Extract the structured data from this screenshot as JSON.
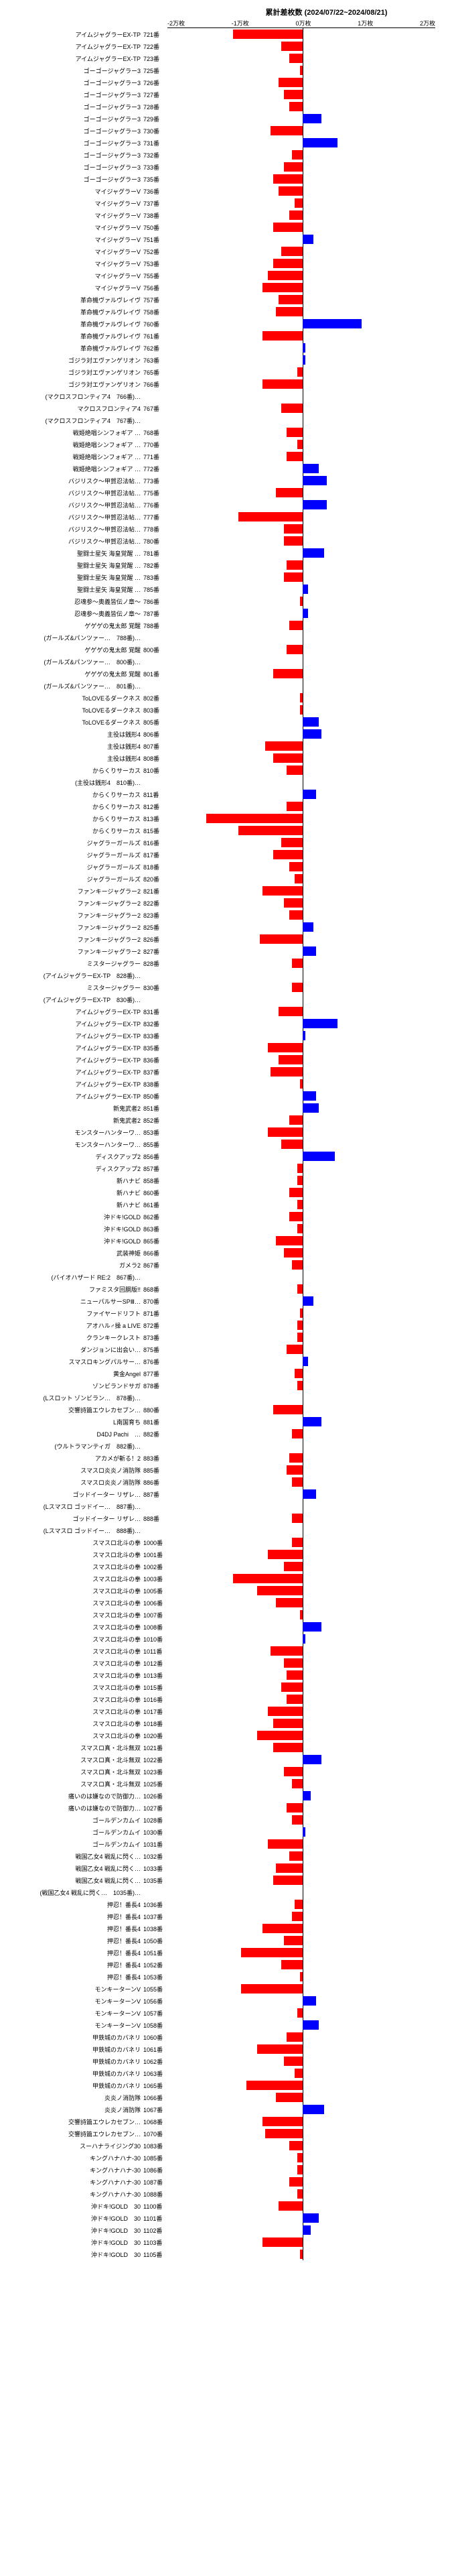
{
  "title": "累計差枚数 (2024/07/22~2024/08/21)",
  "axis_labels": [
    "-2万枚",
    "-1万枚",
    "0万枚",
    "1万枚",
    "2万枚"
  ],
  "xlim": [
    -25000,
    25000
  ],
  "colors": {
    "neg": "#ff0000",
    "pos": "#0000ff",
    "bg": "#ffffff"
  },
  "bar_area_width": 400,
  "rows": [
    {
      "label": "アイムジャグラーEX-TP",
      "num": "721番",
      "value": -13000
    },
    {
      "label": "アイムジャグラーEX-TP",
      "num": "722番",
      "value": -4000
    },
    {
      "label": "アイムジャグラーEX-TP",
      "num": "723番",
      "value": -2500
    },
    {
      "label": "ゴーゴージャグラー3",
      "num": "725番",
      "value": -500
    },
    {
      "label": "ゴーゴージャグラー3",
      "num": "726番",
      "value": -4500
    },
    {
      "label": "ゴーゴージャグラー3",
      "num": "727番",
      "value": -3500
    },
    {
      "label": "ゴーゴージャグラー3",
      "num": "728番",
      "value": -2500
    },
    {
      "label": "ゴーゴージャグラー3",
      "num": "729番",
      "value": 3500
    },
    {
      "label": "ゴーゴージャグラー3",
      "num": "730番",
      "value": -6000
    },
    {
      "label": "ゴーゴージャグラー3",
      "num": "731番",
      "value": 6500
    },
    {
      "label": "ゴーゴージャグラー3",
      "num": "732番",
      "value": -2000
    },
    {
      "label": "ゴーゴージャグラー3",
      "num": "733番",
      "value": -3500
    },
    {
      "label": "ゴーゴージャグラー3",
      "num": "735番",
      "value": -5500
    },
    {
      "label": "マイジャグラーV",
      "num": "736番",
      "value": -4500
    },
    {
      "label": "マイジャグラーV",
      "num": "737番",
      "value": -1500
    },
    {
      "label": "マイジャグラーV",
      "num": "738番",
      "value": -2500
    },
    {
      "label": "マイジャグラーV",
      "num": "750番",
      "value": -5500
    },
    {
      "label": "マイジャグラーV",
      "num": "751番",
      "value": 2000
    },
    {
      "label": "マイジャグラーV",
      "num": "752番",
      "value": -4000
    },
    {
      "label": "マイジャグラーV",
      "num": "753番",
      "value": -5500
    },
    {
      "label": "マイジャグラーV",
      "num": "755番",
      "value": -6500
    },
    {
      "label": "マイジャグラーV",
      "num": "756番",
      "value": -7500
    },
    {
      "label": "革命機ヴァルヴレイヴ",
      "num": "757番",
      "value": -4500
    },
    {
      "label": "革命機ヴァルヴレイヴ",
      "num": "758番",
      "value": -5000
    },
    {
      "label": "革命機ヴァルヴレイヴ",
      "num": "760番",
      "value": 11000
    },
    {
      "label": "革命機ヴァルヴレイヴ",
      "num": "761番",
      "value": -7500
    },
    {
      "label": "革命機ヴァルヴレイヴ",
      "num": "762番",
      "value": 500
    },
    {
      "label": "ゴジラ対エヴァンゲリオン",
      "num": "763番",
      "value": 500
    },
    {
      "label": "ゴジラ対エヴァンゲリオン",
      "num": "765番",
      "value": -1000
    },
    {
      "label": "ゴジラ対エヴァンゲリオン",
      "num": "766番",
      "value": -7500
    },
    {
      "label": "(マクロスフロンティア4　766番)…",
      "num": "",
      "value": 0
    },
    {
      "label": "マクロスフロンティア4",
      "num": "767番",
      "value": -4000
    },
    {
      "label": "(マクロスフロンティア4　767番)…",
      "num": "",
      "value": 0
    },
    {
      "label": "戦姫絶唱シンフォギア …",
      "num": "768番",
      "value": -3000
    },
    {
      "label": "戦姫絶唱シンフォギア …",
      "num": "770番",
      "value": -1000
    },
    {
      "label": "戦姫絶唱シンフォギア …",
      "num": "771番",
      "value": -3000
    },
    {
      "label": "戦姫絶唱シンフォギア …",
      "num": "772番",
      "value": 3000
    },
    {
      "label": "バジリスク～甲賀忍法帖…",
      "num": "773番",
      "value": 4500
    },
    {
      "label": "バジリスク～甲賀忍法帖…",
      "num": "775番",
      "value": -5000
    },
    {
      "label": "バジリスク～甲賀忍法帖…",
      "num": "776番",
      "value": 4500
    },
    {
      "label": "バジリスク～甲賀忍法帖…",
      "num": "777番",
      "value": -12000
    },
    {
      "label": "バジリスク～甲賀忍法帖…",
      "num": "778番",
      "value": -3500
    },
    {
      "label": "バジリスク～甲賀忍法帖…",
      "num": "780番",
      "value": -3500
    },
    {
      "label": "聖闘士星矢 海皇覚醒 …",
      "num": "781番",
      "value": 4000
    },
    {
      "label": "聖闘士星矢 海皇覚醒 …",
      "num": "782番",
      "value": -3000
    },
    {
      "label": "聖闘士星矢 海皇覚醒 …",
      "num": "783番",
      "value": -3500
    },
    {
      "label": "聖闘士星矢 海皇覚醒 …",
      "num": "785番",
      "value": 1000
    },
    {
      "label": "忍魂参～奥義皆伝ノ章～",
      "num": "786番",
      "value": -500
    },
    {
      "label": "忍魂参～奥義皆伝ノ章～",
      "num": "787番",
      "value": 1000
    },
    {
      "label": "ゲゲゲの鬼太郎 覚醒",
      "num": "788番",
      "value": -2500
    },
    {
      "label": "(ガールズ&パンツァー…　788番)…",
      "num": "",
      "value": 0
    },
    {
      "label": "ゲゲゲの鬼太郎 覚醒",
      "num": "800番",
      "value": -3000
    },
    {
      "label": "(ガールズ&パンツァー…　800番)…",
      "num": "",
      "value": 0
    },
    {
      "label": "ゲゲゲの鬼太郎 覚醒",
      "num": "801番",
      "value": -5500
    },
    {
      "label": "(ガールズ&パンツァー…　801番)…",
      "num": "",
      "value": 0
    },
    {
      "label": "ToLOVEるダークネス",
      "num": "802番",
      "value": -500
    },
    {
      "label": "ToLOVEるダークネス",
      "num": "803番",
      "value": -500
    },
    {
      "label": "ToLOVEるダークネス",
      "num": "805番",
      "value": 3000
    },
    {
      "label": "主役は銭形4",
      "num": "806番",
      "value": 3500
    },
    {
      "label": "主役は銭形4",
      "num": "807番",
      "value": -7000
    },
    {
      "label": "主役は銭形4",
      "num": "808番",
      "value": -5500
    },
    {
      "label": "からくりサーカス",
      "num": "810番",
      "value": -3000
    },
    {
      "label": "(主役は銭形4　810番)…",
      "num": "",
      "value": 0
    },
    {
      "label": "からくりサーカス",
      "num": "811番",
      "value": 2500
    },
    {
      "label": "からくりサーカス",
      "num": "812番",
      "value": -3000
    },
    {
      "label": "からくりサーカス",
      "num": "813番",
      "value": -18000
    },
    {
      "label": "からくりサーカス",
      "num": "815番",
      "value": -12000
    },
    {
      "label": "ジャグラーガールズ",
      "num": "816番",
      "value": -4000
    },
    {
      "label": "ジャグラーガールズ",
      "num": "817番",
      "value": -5500
    },
    {
      "label": "ジャグラーガールズ",
      "num": "818番",
      "value": -2500
    },
    {
      "label": "ジャグラーガールズ",
      "num": "820番",
      "value": -1500
    },
    {
      "label": "ファンキージャグラー2",
      "num": "821番",
      "value": -7500
    },
    {
      "label": "ファンキージャグラー2",
      "num": "822番",
      "value": -3500
    },
    {
      "label": "ファンキージャグラー2",
      "num": "823番",
      "value": -2500
    },
    {
      "label": "ファンキージャグラー2",
      "num": "825番",
      "value": 2000
    },
    {
      "label": "ファンキージャグラー2",
      "num": "826番",
      "value": -8000
    },
    {
      "label": "ファンキージャグラー2",
      "num": "827番",
      "value": 2500
    },
    {
      "label": "ミスタージャグラー",
      "num": "828番",
      "value": -2000
    },
    {
      "label": "(アイムジャグラーEX-TP　828番)…",
      "num": "",
      "value": 0
    },
    {
      "label": "ミスタージャグラー",
      "num": "830番",
      "value": -2000
    },
    {
      "label": "(アイムジャグラーEX-TP　830番)…",
      "num": "",
      "value": 0
    },
    {
      "label": "アイムジャグラーEX-TP",
      "num": "831番",
      "value": -4500
    },
    {
      "label": "アイムジャグラーEX-TP",
      "num": "832番",
      "value": 6500
    },
    {
      "label": "アイムジャグラーEX-TP",
      "num": "833番",
      "value": 500
    },
    {
      "label": "アイムジャグラーEX-TP",
      "num": "835番",
      "value": -6500
    },
    {
      "label": "アイムジャグラーEX-TP",
      "num": "836番",
      "value": -4500
    },
    {
      "label": "アイムジャグラーEX-TP",
      "num": "837番",
      "value": -6000
    },
    {
      "label": "アイムジャグラーEX-TP",
      "num": "838番",
      "value": -500
    },
    {
      "label": "アイムジャグラーEX-TP",
      "num": "850番",
      "value": 2500
    },
    {
      "label": "新鬼武者2",
      "num": "851番",
      "value": 3000
    },
    {
      "label": "新鬼武者2",
      "num": "852番",
      "value": -2500
    },
    {
      "label": "モンスターハンターワ…",
      "num": "853番",
      "value": -6500
    },
    {
      "label": "モンスターハンターワ…",
      "num": "855番",
      "value": -4000
    },
    {
      "label": "ディスクアップ2",
      "num": "856番",
      "value": 6000
    },
    {
      "label": "ディスクアップ2",
      "num": "857番",
      "value": -1000
    },
    {
      "label": "新ハナビ",
      "num": "858番",
      "value": -1000
    },
    {
      "label": "新ハナビ",
      "num": "860番",
      "value": -2500
    },
    {
      "label": "新ハナビ",
      "num": "861番",
      "value": -1000
    },
    {
      "label": "沖ドキ!GOLD",
      "num": "862番",
      "value": -2500
    },
    {
      "label": "沖ドキ!GOLD",
      "num": "863番",
      "value": -1000
    },
    {
      "label": "沖ドキ!GOLD",
      "num": "865番",
      "value": -5000
    },
    {
      "label": "武装神姫",
      "num": "866番",
      "value": -3500
    },
    {
      "label": "ガメラ2",
      "num": "867番",
      "value": -2000
    },
    {
      "label": "(バイオハザード RE:2　867番)…",
      "num": "",
      "value": 0
    },
    {
      "label": "ファミスタ回胴版!!",
      "num": "868番",
      "value": -1000
    },
    {
      "label": "ニューパルサーSPⅢ…",
      "num": "870番",
      "value": 2000
    },
    {
      "label": "ファイヤードリフト",
      "num": "871番",
      "value": -500
    },
    {
      "label": "アオハル♂操 a LIVE",
      "num": "872番",
      "value": -1000
    },
    {
      "label": "クランキークレスト",
      "num": "873番",
      "value": -1000
    },
    {
      "label": "ダンジョンに出会い…",
      "num": "875番",
      "value": -3000
    },
    {
      "label": "スマスロキングパルサー…",
      "num": "876番",
      "value": 1000
    },
    {
      "label": "黄金Angel",
      "num": "877番",
      "value": -1500
    },
    {
      "label": "ゾンビランドサガ",
      "num": "878番",
      "value": -1000
    },
    {
      "label": "(Lスロット ゾンビラン…　878番)…",
      "num": "",
      "value": 0
    },
    {
      "label": "交響詩篇エウレカセブン…",
      "num": "880番",
      "value": -5500
    },
    {
      "label": "L南国育ち",
      "num": "881番",
      "value": 3500
    },
    {
      "label": "D4DJ Pachi　…",
      "num": "882番",
      "value": -2000
    },
    {
      "label": "(ウルトラマンティガ　882番)…",
      "num": "",
      "value": 0
    },
    {
      "label": "アカメが斬る！2",
      "num": "883番",
      "value": -2500
    },
    {
      "label": "スマスロ炎炎ノ消防隊",
      "num": "885番",
      "value": -3000
    },
    {
      "label": "スマスロ炎炎ノ消防隊",
      "num": "886番",
      "value": -2000
    },
    {
      "label": "ゴッドイーター リザレ…",
      "num": "887番",
      "value": 2500
    },
    {
      "label": "(Lスマスロ ゴッドイー…　887番)…",
      "num": "",
      "value": 0
    },
    {
      "label": "ゴッドイーター リザレ…",
      "num": "888番",
      "value": -2000
    },
    {
      "label": "(Lスマスロ ゴッドイー…　888番)…",
      "num": "",
      "value": 0
    },
    {
      "label": "スマスロ北斗の拳",
      "num": "1000番",
      "value": -2000
    },
    {
      "label": "スマスロ北斗の拳",
      "num": "1001番",
      "value": -6500
    },
    {
      "label": "スマスロ北斗の拳",
      "num": "1002番",
      "value": -3500
    },
    {
      "label": "スマスロ北斗の拳",
      "num": "1003番",
      "value": -13000
    },
    {
      "label": "スマスロ北斗の拳",
      "num": "1005番",
      "value": -8500
    },
    {
      "label": "スマスロ北斗の拳",
      "num": "1006番",
      "value": -5000
    },
    {
      "label": "スマスロ北斗の拳",
      "num": "1007番",
      "value": -500
    },
    {
      "label": "スマスロ北斗の拳",
      "num": "1008番",
      "value": 3500
    },
    {
      "label": "スマスロ北斗の拳",
      "num": "1010番",
      "value": 500
    },
    {
      "label": "スマスロ北斗の拳",
      "num": "1011番",
      "value": -6000
    },
    {
      "label": "スマスロ北斗の拳",
      "num": "1012番",
      "value": -3500
    },
    {
      "label": "スマスロ北斗の拳",
      "num": "1013番",
      "value": -3000
    },
    {
      "label": "スマスロ北斗の拳",
      "num": "1015番",
      "value": -4000
    },
    {
      "label": "スマスロ北斗の拳",
      "num": "1016番",
      "value": -3000
    },
    {
      "label": "スマスロ北斗の拳",
      "num": "1017番",
      "value": -6500
    },
    {
      "label": "スマスロ北斗の拳",
      "num": "1018番",
      "value": -5500
    },
    {
      "label": "スマスロ北斗の拳",
      "num": "1020番",
      "value": -8500
    },
    {
      "label": "スマスロ真・北斗無双",
      "num": "1021番",
      "value": -5500
    },
    {
      "label": "スマスロ真・北斗無双",
      "num": "1022番",
      "value": 3500
    },
    {
      "label": "スマスロ真・北斗無双",
      "num": "1023番",
      "value": -3500
    },
    {
      "label": "スマスロ真・北斗無双",
      "num": "1025番",
      "value": -2000
    },
    {
      "label": "痛いのは嫌なので防御力…",
      "num": "1026番",
      "value": 1500
    },
    {
      "label": "痛いのは嫌なので防御力…",
      "num": "1027番",
      "value": -3000
    },
    {
      "label": "ゴールデンカムイ",
      "num": "1028番",
      "value": -2000
    },
    {
      "label": "ゴールデンカムイ",
      "num": "1030番",
      "value": 500
    },
    {
      "label": "ゴールデンカムイ",
      "num": "1031番",
      "value": -6500
    },
    {
      "label": "戦国乙女4 戦乱に閃く…",
      "num": "1032番",
      "value": -2500
    },
    {
      "label": "戦国乙女4 戦乱に閃く…",
      "num": "1033番",
      "value": -5000
    },
    {
      "label": "戦国乙女4 戦乱に閃く…",
      "num": "1035番",
      "value": -5500
    },
    {
      "label": "(戦国乙女4 戦乱に閃く…　1035番)…",
      "num": "",
      "value": 0
    },
    {
      "label": "押忍！番長4",
      "num": "1036番",
      "value": -1500
    },
    {
      "label": "押忍！番長4",
      "num": "1037番",
      "value": -2000
    },
    {
      "label": "押忍！番長4",
      "num": "1038番",
      "value": -7500
    },
    {
      "label": "押忍！番長4",
      "num": "1050番",
      "value": -3500
    },
    {
      "label": "押忍！番長4",
      "num": "1051番",
      "value": -11500
    },
    {
      "label": "押忍！番長4",
      "num": "1052番",
      "value": -4000
    },
    {
      "label": "押忍！番長4",
      "num": "1053番",
      "value": -500
    },
    {
      "label": "モンキーターンV",
      "num": "1055番",
      "value": -11500
    },
    {
      "label": "モンキーターンV",
      "num": "1056番",
      "value": 2500
    },
    {
      "label": "モンキーターンV",
      "num": "1057番",
      "value": -1000
    },
    {
      "label": "モンキーターンV",
      "num": "1058番",
      "value": 3000
    },
    {
      "label": "甲鉄城のカバネリ",
      "num": "1060番",
      "value": -3000
    },
    {
      "label": "甲鉄城のカバネリ",
      "num": "1061番",
      "value": -8500
    },
    {
      "label": "甲鉄城のカバネリ",
      "num": "1062番",
      "value": -3500
    },
    {
      "label": "甲鉄城のカバネリ",
      "num": "1063番",
      "value": -1500
    },
    {
      "label": "甲鉄城のカバネリ",
      "num": "1065番",
      "value": -10500
    },
    {
      "label": "炎炎ノ消防隊",
      "num": "1066番",
      "value": -5000
    },
    {
      "label": "炎炎ノ消防隊",
      "num": "1067番",
      "value": 4000
    },
    {
      "label": "交響詩篇エウレカセブン…",
      "num": "1068番",
      "value": -7500
    },
    {
      "label": "交響詩篇エウレカセブン…",
      "num": "1070番",
      "value": -7000
    },
    {
      "label": "スーハナライジング30",
      "num": "1083番",
      "value": -2500
    },
    {
      "label": "キングハナハナ-30",
      "num": "1085番",
      "value": -1000
    },
    {
      "label": "キングハナハナ-30",
      "num": "1086番",
      "value": -1000
    },
    {
      "label": "キングハナハナ-30",
      "num": "1087番",
      "value": -2500
    },
    {
      "label": "キングハナハナ-30",
      "num": "1088番",
      "value": -1000
    },
    {
      "label": "沖ドキ!GOLD　30",
      "num": "1100番",
      "value": -4500
    },
    {
      "label": "沖ドキ!GOLD　30",
      "num": "1101番",
      "value": 3000
    },
    {
      "label": "沖ドキ!GOLD　30",
      "num": "1102番",
      "value": 1500
    },
    {
      "label": "沖ドキ!GOLD　30",
      "num": "1103番",
      "value": -7500
    },
    {
      "label": "沖ドキ!GOLD　30",
      "num": "1105番",
      "value": -500
    }
  ]
}
